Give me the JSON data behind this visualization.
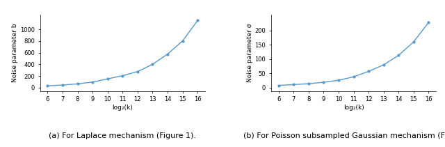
{
  "left": {
    "x": [
      6,
      7,
      8,
      9,
      10,
      11,
      12,
      13,
      14,
      15,
      16
    ],
    "y": [
      30,
      45,
      65,
      95,
      150,
      205,
      275,
      400,
      575,
      800,
      1150
    ],
    "xlabel": "log₂(k)",
    "ylabel": "Noise parameter b",
    "yticks": [
      0,
      200,
      400,
      600,
      800,
      1000
    ],
    "ylim": [
      -60,
      1250
    ],
    "xlim": [
      5.5,
      16.5
    ],
    "caption": "(a) For Laplace mechanism (Figure 1)."
  },
  "right": {
    "x": [
      6,
      7,
      8,
      9,
      10,
      11,
      12,
      13,
      14,
      15,
      16
    ],
    "y": [
      8,
      11,
      14,
      19,
      26,
      38,
      57,
      80,
      113,
      160,
      228
    ],
    "xlabel": "log₂(k)",
    "ylabel": "Noise parameter σ",
    "yticks": [
      0,
      50,
      100,
      150,
      200
    ],
    "ylim": [
      -12,
      255
    ],
    "xlim": [
      5.5,
      16.5
    ],
    "caption": "(b) For Poisson subsampled Gaussian mechanism (Figure"
  },
  "line_color": "#5599cc",
  "marker": ".",
  "marker_size": 4,
  "line_width": 1.0,
  "tick_fontsize": 6,
  "label_fontsize": 6.5,
  "caption_fontsize": 8
}
